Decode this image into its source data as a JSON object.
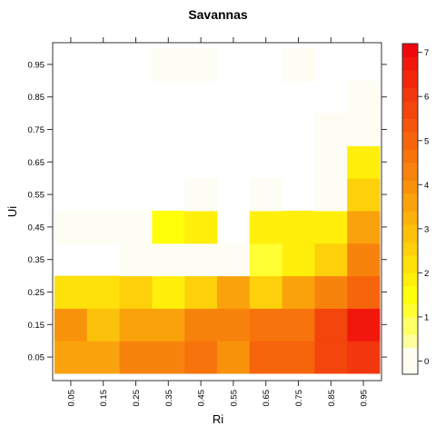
{
  "chart_data": {
    "type": "heatmap",
    "title": "Savannas",
    "xlabel": "Ri",
    "ylabel": "Ui",
    "x": [
      "0.05",
      "0.15",
      "0.25",
      "0.35",
      "0.45",
      "0.55",
      "0.65",
      "0.75",
      "0.85",
      "0.95"
    ],
    "y": [
      "0.05",
      "0.15",
      "0.25",
      "0.35",
      "0.45",
      "0.55",
      "0.65",
      "0.75",
      "0.85",
      "0.95"
    ],
    "z": [
      [
        3.7,
        3.7,
        4.3,
        4.3,
        4.5,
        4.0,
        5.0,
        5.0,
        5.5,
        6.0
      ],
      [
        4.0,
        3.0,
        3.7,
        3.7,
        4.3,
        4.3,
        4.7,
        4.7,
        5.5,
        6.8
      ],
      [
        2.0,
        2.0,
        2.6,
        1.8,
        2.6,
        3.7,
        2.6,
        3.7,
        4.3,
        5.0
      ],
      [
        null,
        null,
        0.1,
        0.1,
        0.1,
        0.1,
        1.0,
        1.8,
        2.6,
        4.3
      ],
      [
        0.1,
        0.1,
        0.1,
        1.3,
        1.8,
        null,
        1.8,
        1.8,
        1.8,
        3.4
      ],
      [
        null,
        null,
        null,
        null,
        0.1,
        null,
        0.1,
        null,
        0.1,
        2.6
      ],
      [
        null,
        null,
        null,
        null,
        null,
        null,
        null,
        null,
        0.1,
        1.8
      ],
      [
        null,
        null,
        null,
        null,
        null,
        null,
        null,
        null,
        0.1,
        0.1
      ],
      [
        null,
        null,
        null,
        null,
        null,
        null,
        null,
        null,
        null,
        0.1
      ],
      [
        null,
        null,
        null,
        0.1,
        0.1,
        null,
        null,
        0.1,
        null,
        null
      ]
    ],
    "zlim": [
      -0.3,
      7.2
    ],
    "colorbar": {
      "ticks": [
        "0",
        "1",
        "2",
        "3",
        "4",
        "5",
        "6",
        "7"
      ],
      "breaks": [
        -0.3,
        0.3,
        0.6,
        1.0,
        1.3,
        1.7,
        2.0,
        2.4,
        2.7,
        3.1,
        3.4,
        3.8,
        4.1,
        4.5,
        4.8,
        5.2,
        5.5,
        5.9,
        6.2,
        6.6,
        6.9,
        7.2
      ],
      "colors": [
        "#fdfdf3",
        "#fefea0",
        "#ffff66",
        "#ffff33",
        "#ffff0a",
        "#ffef0a",
        "#fee00a",
        "#fdd00a",
        "#fcc10a",
        "#fbb10b",
        "#faa20b",
        "#f9920b",
        "#f8830c",
        "#f7740c",
        "#f6640c",
        "#f5550c",
        "#f4450d",
        "#f3360d",
        "#f2260d",
        "#f1170d",
        "#f0070e"
      ]
    },
    "grid": false
  }
}
